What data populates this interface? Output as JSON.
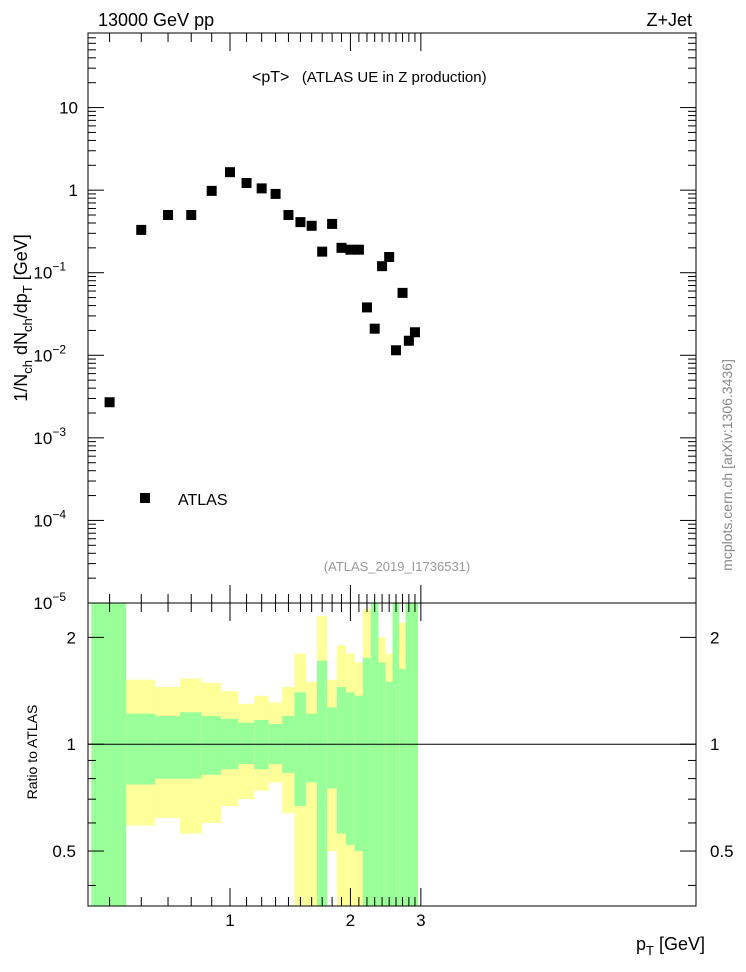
{
  "header": {
    "left": "13000 GeV pp",
    "right": "Z+Jet"
  },
  "side_label": "mcplots.cern.ch [arXiv:1306.3436]",
  "chart_data": [
    {
      "type": "scatter",
      "title": "<pT>",
      "subtitle": "(ATLAS UE in Z production)",
      "analysis_id": "(ATLAS_2019_I1736531)",
      "ylabel_main": "1/N",
      "ylabel_sub_ch": "ch",
      "ylabel_mid": " dN",
      "ylabel_mid_ch": "ch",
      "ylabel_end": "/dp",
      "ylabel_sub_t": "T",
      "ylabel_unit": " [GeV]",
      "xlabel_main": "p",
      "xlabel_sub": "T",
      "xlabel_unit": " [GeV]",
      "yscale": "log",
      "ylim": [
        1e-05,
        80
      ],
      "xscale": "log",
      "xlim": [
        0.44,
        3.0
      ],
      "legend": {
        "placement": "lower-left",
        "entries": [
          "ATLAS"
        ]
      },
      "series": [
        {
          "name": "ATLAS",
          "marker": "square",
          "color": "#000000",
          "x": [
            0.5,
            0.6,
            0.7,
            0.8,
            0.9,
            1.0,
            1.1,
            1.2,
            1.3,
            1.4,
            1.5,
            1.6,
            1.7,
            1.8,
            1.9,
            2.0,
            2.1,
            2.2,
            2.3,
            2.4,
            2.5,
            2.6,
            2.7,
            2.8,
            2.9
          ],
          "y": [
            0.0027,
            0.33,
            0.5,
            0.5,
            0.98,
            1.65,
            1.22,
            1.05,
            0.9,
            0.5,
            0.41,
            0.37,
            0.18,
            0.39,
            0.2,
            0.19,
            0.19,
            0.038,
            0.021,
            0.12,
            0.155,
            0.0115,
            0.057,
            0.015,
            0.019
          ]
        }
      ],
      "y_ticks": [
        {
          "v": 10,
          "base": "10",
          "exp": ""
        },
        {
          "v": 1,
          "base": "1",
          "exp": ""
        },
        {
          "v": 0.1,
          "base": "10",
          "exp": "−1"
        },
        {
          "v": 0.01,
          "base": "10",
          "exp": "−2"
        },
        {
          "v": 0.001,
          "base": "10",
          "exp": "−3"
        },
        {
          "v": 0.0001,
          "base": "10",
          "exp": "−4"
        },
        {
          "v": 1e-05,
          "base": "10",
          "exp": "−5"
        }
      ]
    },
    {
      "type": "area",
      "ylabel": "Ratio to ATLAS",
      "yscale": "log",
      "ylim": [
        0.35,
        2.5
      ],
      "y_ticks": [
        {
          "v": 2,
          "label": "2"
        },
        {
          "v": 1,
          "label": "1"
        },
        {
          "v": 0.5,
          "label": "0.5"
        }
      ],
      "x_ticks": [
        {
          "v": 1,
          "label": "1"
        },
        {
          "v": 2,
          "label": "2"
        },
        {
          "v": 3,
          "label": "3"
        }
      ],
      "reference_line": 1,
      "colors": {
        "green": "#99ff99",
        "yellow": "#ffff99"
      },
      "bins": {
        "edges": [
          0.45,
          0.55,
          0.65,
          0.75,
          0.85,
          0.95,
          1.05,
          1.15,
          1.25,
          1.35,
          1.45,
          1.55,
          1.65,
          1.75,
          1.85,
          1.95,
          2.05,
          2.15,
          2.25,
          2.35,
          2.45,
          2.55,
          2.65,
          2.75,
          2.85,
          2.95
        ],
        "green_low": [
          0.35,
          0.77,
          0.8,
          0.8,
          0.82,
          0.85,
          0.88,
          0.85,
          0.88,
          0.83,
          0.67,
          0.78,
          0.35,
          0.75,
          0.56,
          0.52,
          0.5,
          0.35,
          0.35,
          0.35,
          0.35,
          0.35,
          0.35,
          0.35,
          0.35
        ],
        "green_high": [
          2.5,
          1.22,
          1.2,
          1.23,
          1.2,
          1.18,
          1.15,
          1.17,
          1.14,
          1.2,
          1.4,
          1.22,
          1.72,
          1.27,
          1.45,
          1.4,
          1.37,
          1.75,
          2.5,
          1.7,
          1.5,
          2.5,
          1.63,
          2.5,
          2.5
        ],
        "yellow_low": [
          0.35,
          0.59,
          0.62,
          0.56,
          0.6,
          0.67,
          0.7,
          0.74,
          0.78,
          0.64,
          0.35,
          0.35,
          0.35,
          0.5,
          0.35,
          0.35,
          0.35,
          0.35,
          0.35,
          0.35,
          0.35,
          0.35,
          0.35,
          0.35,
          0.35
        ],
        "yellow_high": [
          2.5,
          1.52,
          1.45,
          1.53,
          1.49,
          1.41,
          1.3,
          1.37,
          1.31,
          1.45,
          1.8,
          1.5,
          2.3,
          1.52,
          1.9,
          1.8,
          1.7,
          2.4,
          2.5,
          2.0,
          1.8,
          2.5,
          2.2,
          2.5,
          2.5
        ]
      }
    }
  ]
}
